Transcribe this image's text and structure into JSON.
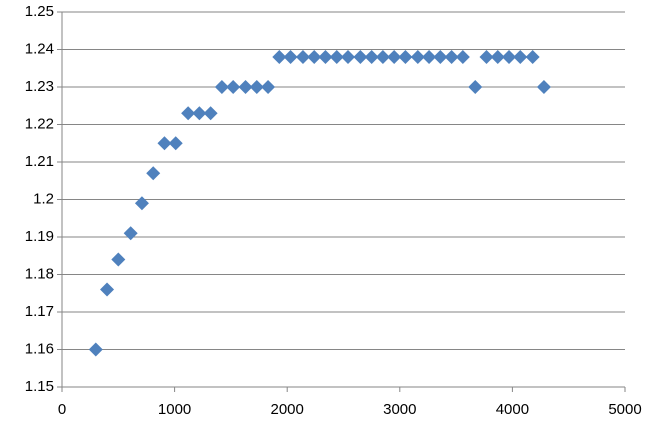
{
  "chart_data": {
    "type": "scatter",
    "x": [
      300,
      400,
      500,
      610,
      710,
      810,
      910,
      1010,
      1120,
      1220,
      1320,
      1420,
      1520,
      1630,
      1730,
      1830,
      1930,
      2030,
      2140,
      2240,
      2340,
      2440,
      2540,
      2650,
      2750,
      2850,
      2950,
      3050,
      3160,
      3260,
      3360,
      3460,
      3560,
      3670,
      3770,
      3870,
      3970,
      4070,
      4180,
      4280
    ],
    "values": [
      1.16,
      1.176,
      1.184,
      1.191,
      1.199,
      1.207,
      1.215,
      1.215,
      1.223,
      1.223,
      1.223,
      1.23,
      1.23,
      1.23,
      1.23,
      1.23,
      1.238,
      1.238,
      1.238,
      1.238,
      1.238,
      1.238,
      1.238,
      1.238,
      1.238,
      1.238,
      1.238,
      1.238,
      1.238,
      1.238,
      1.238,
      1.238,
      1.238,
      1.23,
      1.238,
      1.238,
      1.238,
      1.238,
      1.238,
      1.23
    ],
    "color": "#4f81bd",
    "xlim": [
      0,
      5000
    ],
    "xticks": [
      0,
      1000,
      2000,
      3000,
      4000,
      5000
    ],
    "ylim": [
      1.15,
      1.25
    ],
    "yticks": [
      1.15,
      1.16,
      1.17,
      1.18,
      1.19,
      1.2,
      1.21,
      1.22,
      1.23,
      1.24,
      1.25
    ],
    "grid": true
  }
}
